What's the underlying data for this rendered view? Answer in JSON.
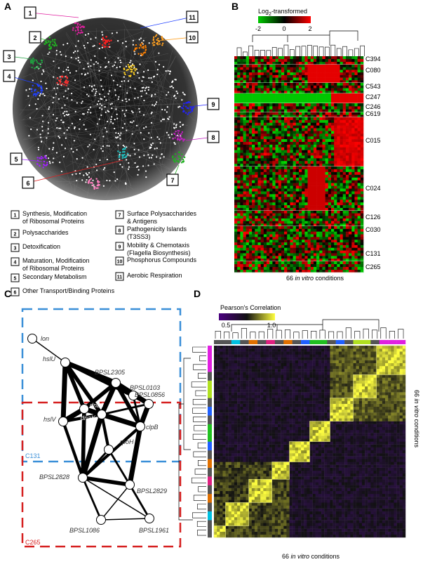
{
  "panels": {
    "A": {
      "letter": "A",
      "cluster_markers": [
        "1",
        "2",
        "3",
        "4",
        "5",
        "6",
        "7",
        "8",
        "9",
        "10",
        "11"
      ],
      "legend": [
        {
          "num": "1",
          "text1": "Synthesis, Modification",
          "text2": "of Ribosomal Proteins"
        },
        {
          "num": "2",
          "text1": "Polysaccharides",
          "text2": ""
        },
        {
          "num": "3",
          "text1": "Detoxification",
          "text2": ""
        },
        {
          "num": "4",
          "text1": "Maturation, Modification",
          "text2": "of Ribosomal Proteins"
        },
        {
          "num": "5",
          "text1": "Secondary Metabolism",
          "text2": ""
        },
        {
          "num": "6",
          "text1": "Other Transport/Binding Proteins",
          "text2": ""
        },
        {
          "num": "7",
          "text1": "Surface Polysaccharides",
          "text2": "& Antigens"
        },
        {
          "num": "8",
          "text1": "Pathogenicity Islands",
          "text2": "(T3SS3)"
        },
        {
          "num": "9",
          "text1": "Mobility & Chemotaxis",
          "text2": "(Flagella Biosynthesis)"
        },
        {
          "num": "10",
          "text1": "Phosphorus Compounds",
          "text2": ""
        },
        {
          "num": "11",
          "text1": "Aerobic Respiration",
          "text2": ""
        }
      ]
    },
    "B": {
      "letter": "B",
      "colorbar_title_pre": "Log",
      "colorbar_title_sub": "2",
      "colorbar_title_post": "-transformed",
      "colorbar_ticks": [
        "-2",
        "0",
        "2"
      ],
      "clusters": [
        "C394",
        "C080",
        "C543",
        "C247",
        "C246",
        "C619",
        "C015",
        "C024",
        "C126",
        "C030",
        "C131",
        "C265"
      ],
      "xlabel_pre": "66 ",
      "xlabel_it": "in vitro",
      "xlabel_post": " conditions"
    },
    "C": {
      "letter": "C",
      "group_top": "C131",
      "group_bottom": "C265",
      "nodes": {
        "lon": "lon",
        "hslU": "hslU",
        "BPSL2305": "BPSL2305",
        "BPSL0103": "BPSL0103",
        "BPSL0856": "BPSL0856",
        "hslV": "hslV",
        "dnaJ": "dnaJ",
        "dnaK": "dnaK",
        "clpB": "clpB",
        "rpoH": "rpoH",
        "BPSL2828": "BPSL2828",
        "BPSL2829": "BPSL2829",
        "BPSL1086": "BPSL1086",
        "BPSL1961": "BPSL1961"
      }
    },
    "D": {
      "letter": "D",
      "colorbar_title": "Pearson's Correlation",
      "colorbar_ticks": [
        "0.5",
        "1.0"
      ],
      "xlabel_pre": "66 ",
      "xlabel_it": "in vitro",
      "xlabel_post": " conditions",
      "ylabel_pre": "66 ",
      "ylabel_it": "in vitro",
      "ylabel_post": " conditions"
    }
  },
  "colors": {
    "network_bg": "#222222",
    "group_top": "#3a8fd8",
    "group_bottom": "#d62020",
    "heat_low": "#00d000",
    "heat_high": "#ff0000",
    "corr_low": "#4a0080",
    "corr_high": "#ffff40"
  }
}
